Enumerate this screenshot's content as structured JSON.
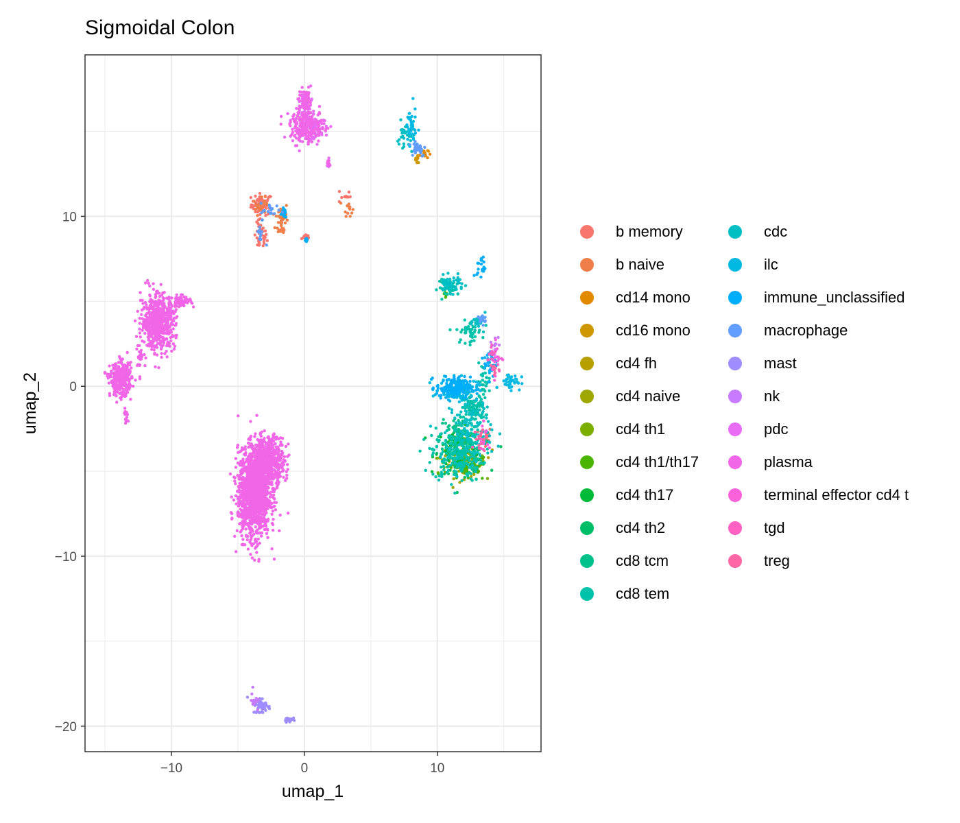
{
  "chart_data": {
    "type": "scatter",
    "title": "Sigmoidal Colon",
    "xlabel": "umap_1",
    "ylabel": "umap_2",
    "xlim": [
      -16.5,
      17.8
    ],
    "ylim": [
      -21.5,
      19.5
    ],
    "x_ticks": [
      -10,
      0,
      10
    ],
    "x_tick_labels": [
      "−10",
      "0",
      "10"
    ],
    "y_ticks": [
      -20,
      -10,
      0,
      10
    ],
    "y_tick_labels": [
      "−20",
      "−10",
      "0",
      "10"
    ],
    "grid": true,
    "legend_position": "right",
    "legend_title": "",
    "series": [
      {
        "name": "b memory",
        "color": "#F8766D",
        "clusters": [
          [
            -3.2,
            10.7,
            0.5,
            0.4,
            60
          ],
          [
            -3.3,
            8.8,
            0.3,
            0.5,
            40
          ],
          [
            0.1,
            8.8,
            0.2,
            0.1,
            10
          ],
          [
            3.0,
            11.2,
            0.3,
            0.3,
            10
          ],
          [
            13.6,
            -3.0,
            0.3,
            0.4,
            14
          ]
        ]
      },
      {
        "name": "b naive",
        "color": "#EF7F49",
        "clusters": [
          [
            -1.7,
            9.8,
            0.3,
            0.7,
            40
          ],
          [
            3.3,
            10.5,
            0.2,
            0.3,
            14
          ],
          [
            -3.2,
            10.6,
            0.4,
            0.3,
            25
          ]
        ]
      },
      {
        "name": "cd14 mono",
        "color": "#E18A00",
        "clusters": [
          [
            9.0,
            13.7,
            0.2,
            0.2,
            12
          ]
        ]
      },
      {
        "name": "cd16 mono",
        "color": "#CE9600",
        "clusters": [
          [
            8.5,
            13.3,
            0.2,
            0.2,
            10
          ]
        ]
      },
      {
        "name": "cd4 fh",
        "color": "#B79F00",
        "clusters": [
          [
            12.5,
            -4.3,
            1.0,
            0.4,
            25
          ]
        ]
      },
      {
        "name": "cd4 naive",
        "color": "#9DA700",
        "clusters": [
          [
            12.0,
            -4.6,
            1.0,
            0.5,
            40
          ]
        ]
      },
      {
        "name": "cd4 th1",
        "color": "#7CAE00",
        "clusters": [
          [
            11.8,
            -4.2,
            1.1,
            0.6,
            60
          ]
        ]
      },
      {
        "name": "cd4 th1/th17",
        "color": "#49B500",
        "clusters": [
          [
            12.2,
            -4.8,
            1.0,
            0.5,
            60
          ],
          [
            10.6,
            5.5,
            0.1,
            0.2,
            6
          ]
        ]
      },
      {
        "name": "cd4 th17",
        "color": "#00BA38",
        "clusters": [
          [
            11.6,
            -3.6,
            1.1,
            0.7,
            70
          ]
        ]
      },
      {
        "name": "cd4 th2",
        "color": "#00BE67",
        "clusters": [
          [
            12.0,
            -4.0,
            1.1,
            0.7,
            60
          ]
        ]
      },
      {
        "name": "cd8 tcm",
        "color": "#00C08B",
        "clusters": [
          [
            11.6,
            -3.0,
            0.9,
            0.9,
            80
          ]
        ]
      },
      {
        "name": "cd8 tem",
        "color": "#00C1A9",
        "clusters": [
          [
            11.5,
            -4.0,
            1.2,
            1.0,
            220
          ],
          [
            12.8,
            -1.3,
            0.5,
            0.5,
            90
          ],
          [
            12.4,
            3.2,
            0.6,
            0.4,
            50
          ],
          [
            13.5,
            0.3,
            0.3,
            0.6,
            30
          ],
          [
            11.0,
            5.8,
            0.6,
            0.3,
            40
          ]
        ]
      },
      {
        "name": "cdc",
        "color": "#00BFC4",
        "clusters": [
          [
            12.5,
            -2.5,
            1.0,
            1.2,
            120
          ],
          [
            7.6,
            14.6,
            0.4,
            0.6,
            30
          ],
          [
            11.0,
            6.0,
            0.6,
            0.3,
            50
          ],
          [
            13.2,
            3.8,
            0.3,
            0.3,
            25
          ]
        ]
      },
      {
        "name": "ilc",
        "color": "#00B9E3",
        "clusters": [
          [
            8.0,
            15.3,
            0.25,
            0.7,
            40
          ],
          [
            11.6,
            -0.2,
            0.9,
            0.4,
            120
          ],
          [
            15.5,
            0.3,
            0.5,
            0.3,
            40
          ]
        ]
      },
      {
        "name": "immune_unclassified",
        "color": "#00ADFA",
        "clusters": [
          [
            11.2,
            -0.1,
            0.8,
            0.4,
            140
          ],
          [
            13.3,
            7.0,
            0.2,
            0.4,
            20
          ],
          [
            14.0,
            1.4,
            0.3,
            0.6,
            40
          ],
          [
            0.2,
            8.6,
            0.1,
            0.1,
            8
          ],
          [
            -1.6,
            10.2,
            0.2,
            0.3,
            15
          ]
        ]
      },
      {
        "name": "macrophage",
        "color": "#619CFF",
        "clusters": [
          [
            8.5,
            14.0,
            0.4,
            0.3,
            30
          ],
          [
            13.4,
            4.0,
            0.2,
            0.2,
            15
          ],
          [
            -2.5,
            10.3,
            0.5,
            0.3,
            20
          ],
          [
            -3.3,
            9.0,
            0.2,
            0.4,
            10
          ]
        ]
      },
      {
        "name": "mast",
        "color": "#9F8CFF",
        "clusters": [
          [
            -3.2,
            -18.8,
            0.4,
            0.3,
            50
          ],
          [
            -1.2,
            -19.6,
            0.2,
            0.1,
            25
          ]
        ]
      },
      {
        "name": "nk",
        "color": "#C77CFF",
        "clusters": [
          [
            -3.8,
            -18.5,
            0.2,
            0.4,
            15
          ],
          [
            14.4,
            2.5,
            0.2,
            0.3,
            12
          ]
        ]
      },
      {
        "name": "pdc",
        "color": "#E76BF3",
        "clusters": [
          [
            0.3,
            15.3,
            0.8,
            0.6,
            120
          ],
          [
            0.1,
            16.8,
            0.3,
            0.4,
            40
          ],
          [
            1.8,
            13.1,
            0.1,
            0.2,
            8
          ]
        ]
      },
      {
        "name": "plasma",
        "color": "#F066E6",
        "clusters": [
          [
            -3.8,
            -6.3,
            0.75,
            1.6,
            1400
          ],
          [
            -2.7,
            -4.4,
            0.75,
            0.9,
            500
          ],
          [
            -11.0,
            3.8,
            0.8,
            1.0,
            600
          ],
          [
            -13.8,
            0.4,
            0.5,
            0.6,
            350
          ],
          [
            -9.3,
            5.0,
            0.5,
            0.2,
            60
          ],
          [
            -13.4,
            -1.7,
            0.1,
            0.3,
            12
          ],
          [
            -12.3,
            1.7,
            0.3,
            0.4,
            20
          ],
          [
            0.2,
            15.3,
            0.8,
            0.6,
            180
          ],
          [
            0.1,
            16.8,
            0.3,
            0.4,
            50
          ],
          [
            1.8,
            13.1,
            0.1,
            0.2,
            8
          ]
        ]
      },
      {
        "name": "terminal effector cd4 t",
        "color": "#FA62DB",
        "clusters": [
          [
            14.5,
            1.5,
            0.3,
            0.6,
            20
          ],
          [
            13.5,
            -3.0,
            0.3,
            0.5,
            15
          ]
        ]
      },
      {
        "name": "tgd",
        "color": "#FF61C3",
        "clusters": [
          [
            14.0,
            2.0,
            0.2,
            0.4,
            12
          ]
        ]
      },
      {
        "name": "treg",
        "color": "#FF67A4",
        "clusters": [
          [
            13.4,
            -3.2,
            0.3,
            0.5,
            15
          ],
          [
            14.3,
            1.0,
            0.2,
            0.3,
            8
          ]
        ]
      }
    ]
  }
}
